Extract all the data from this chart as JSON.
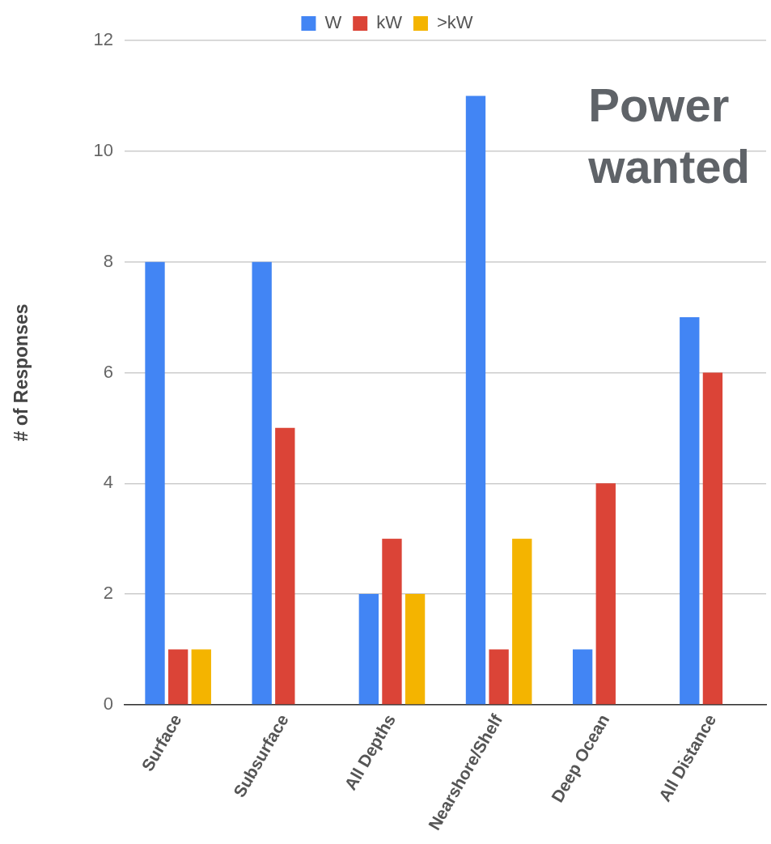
{
  "chart_data": {
    "type": "bar",
    "title": "Power wanted",
    "ylabel": "# of Responses",
    "categories": [
      "Surface",
      "Subsurface",
      "All Depths",
      "Nearshore/Shelf",
      "Deep Ocean",
      "All Distance"
    ],
    "series": [
      {
        "name": "W",
        "color": "#4285f4",
        "values": [
          8,
          8,
          2,
          11,
          1,
          7
        ]
      },
      {
        "name": "kW",
        "color": "#db4437",
        "values": [
          1,
          5,
          3,
          1,
          4,
          6
        ]
      },
      {
        "name": ">kW",
        "color": "#f4b400",
        "values": [
          1,
          null,
          2,
          3,
          null,
          null
        ]
      }
    ],
    "ylim": [
      0,
      12
    ],
    "yticks": [
      0,
      2,
      4,
      6,
      8,
      10,
      12
    ],
    "grid": "y",
    "legend": "top"
  }
}
